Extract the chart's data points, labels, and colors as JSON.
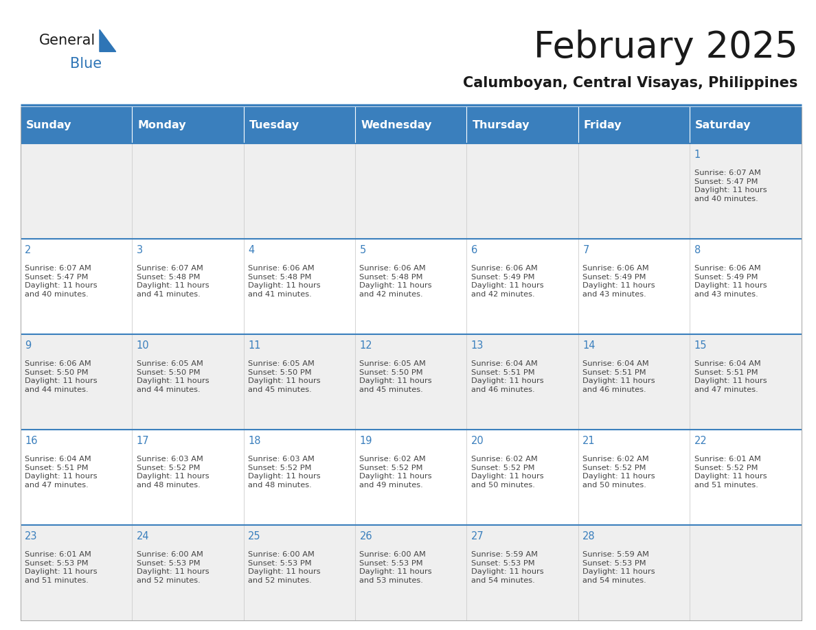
{
  "title": "February 2025",
  "subtitle": "Calumboyan, Central Visayas, Philippines",
  "days_of_week": [
    "Sunday",
    "Monday",
    "Tuesday",
    "Wednesday",
    "Thursday",
    "Friday",
    "Saturday"
  ],
  "header_bg": "#3A7FBD",
  "header_text": "#FFFFFF",
  "cell_bg_odd": "#EFEFEF",
  "cell_bg_even": "#FFFFFF",
  "border_color": "#AAAAAA",
  "day_number_color": "#3A7FBD",
  "cell_text_color": "#444444",
  "title_color": "#1a1a1a",
  "subtitle_color": "#1a1a1a",
  "logo_general_color": "#1a1a1a",
  "logo_blue_color": "#2E75B6",
  "separator_color": "#3A7FBD",
  "calendar_data": [
    [
      {
        "day": "",
        "info": ""
      },
      {
        "day": "",
        "info": ""
      },
      {
        "day": "",
        "info": ""
      },
      {
        "day": "",
        "info": ""
      },
      {
        "day": "",
        "info": ""
      },
      {
        "day": "",
        "info": ""
      },
      {
        "day": "1",
        "info": "Sunrise: 6:07 AM\nSunset: 5:47 PM\nDaylight: 11 hours\nand 40 minutes."
      }
    ],
    [
      {
        "day": "2",
        "info": "Sunrise: 6:07 AM\nSunset: 5:47 PM\nDaylight: 11 hours\nand 40 minutes."
      },
      {
        "day": "3",
        "info": "Sunrise: 6:07 AM\nSunset: 5:48 PM\nDaylight: 11 hours\nand 41 minutes."
      },
      {
        "day": "4",
        "info": "Sunrise: 6:06 AM\nSunset: 5:48 PM\nDaylight: 11 hours\nand 41 minutes."
      },
      {
        "day": "5",
        "info": "Sunrise: 6:06 AM\nSunset: 5:48 PM\nDaylight: 11 hours\nand 42 minutes."
      },
      {
        "day": "6",
        "info": "Sunrise: 6:06 AM\nSunset: 5:49 PM\nDaylight: 11 hours\nand 42 minutes."
      },
      {
        "day": "7",
        "info": "Sunrise: 6:06 AM\nSunset: 5:49 PM\nDaylight: 11 hours\nand 43 minutes."
      },
      {
        "day": "8",
        "info": "Sunrise: 6:06 AM\nSunset: 5:49 PM\nDaylight: 11 hours\nand 43 minutes."
      }
    ],
    [
      {
        "day": "9",
        "info": "Sunrise: 6:06 AM\nSunset: 5:50 PM\nDaylight: 11 hours\nand 44 minutes."
      },
      {
        "day": "10",
        "info": "Sunrise: 6:05 AM\nSunset: 5:50 PM\nDaylight: 11 hours\nand 44 minutes."
      },
      {
        "day": "11",
        "info": "Sunrise: 6:05 AM\nSunset: 5:50 PM\nDaylight: 11 hours\nand 45 minutes."
      },
      {
        "day": "12",
        "info": "Sunrise: 6:05 AM\nSunset: 5:50 PM\nDaylight: 11 hours\nand 45 minutes."
      },
      {
        "day": "13",
        "info": "Sunrise: 6:04 AM\nSunset: 5:51 PM\nDaylight: 11 hours\nand 46 minutes."
      },
      {
        "day": "14",
        "info": "Sunrise: 6:04 AM\nSunset: 5:51 PM\nDaylight: 11 hours\nand 46 minutes."
      },
      {
        "day": "15",
        "info": "Sunrise: 6:04 AM\nSunset: 5:51 PM\nDaylight: 11 hours\nand 47 minutes."
      }
    ],
    [
      {
        "day": "16",
        "info": "Sunrise: 6:04 AM\nSunset: 5:51 PM\nDaylight: 11 hours\nand 47 minutes."
      },
      {
        "day": "17",
        "info": "Sunrise: 6:03 AM\nSunset: 5:52 PM\nDaylight: 11 hours\nand 48 minutes."
      },
      {
        "day": "18",
        "info": "Sunrise: 6:03 AM\nSunset: 5:52 PM\nDaylight: 11 hours\nand 48 minutes."
      },
      {
        "day": "19",
        "info": "Sunrise: 6:02 AM\nSunset: 5:52 PM\nDaylight: 11 hours\nand 49 minutes."
      },
      {
        "day": "20",
        "info": "Sunrise: 6:02 AM\nSunset: 5:52 PM\nDaylight: 11 hours\nand 50 minutes."
      },
      {
        "day": "21",
        "info": "Sunrise: 6:02 AM\nSunset: 5:52 PM\nDaylight: 11 hours\nand 50 minutes."
      },
      {
        "day": "22",
        "info": "Sunrise: 6:01 AM\nSunset: 5:52 PM\nDaylight: 11 hours\nand 51 minutes."
      }
    ],
    [
      {
        "day": "23",
        "info": "Sunrise: 6:01 AM\nSunset: 5:53 PM\nDaylight: 11 hours\nand 51 minutes."
      },
      {
        "day": "24",
        "info": "Sunrise: 6:00 AM\nSunset: 5:53 PM\nDaylight: 11 hours\nand 52 minutes."
      },
      {
        "day": "25",
        "info": "Sunrise: 6:00 AM\nSunset: 5:53 PM\nDaylight: 11 hours\nand 52 minutes."
      },
      {
        "day": "26",
        "info": "Sunrise: 6:00 AM\nSunset: 5:53 PM\nDaylight: 11 hours\nand 53 minutes."
      },
      {
        "day": "27",
        "info": "Sunrise: 5:59 AM\nSunset: 5:53 PM\nDaylight: 11 hours\nand 54 minutes."
      },
      {
        "day": "28",
        "info": "Sunrise: 5:59 AM\nSunset: 5:53 PM\nDaylight: 11 hours\nand 54 minutes."
      },
      {
        "day": "",
        "info": ""
      }
    ]
  ],
  "figsize": [
    11.88,
    9.18
  ],
  "dpi": 100
}
